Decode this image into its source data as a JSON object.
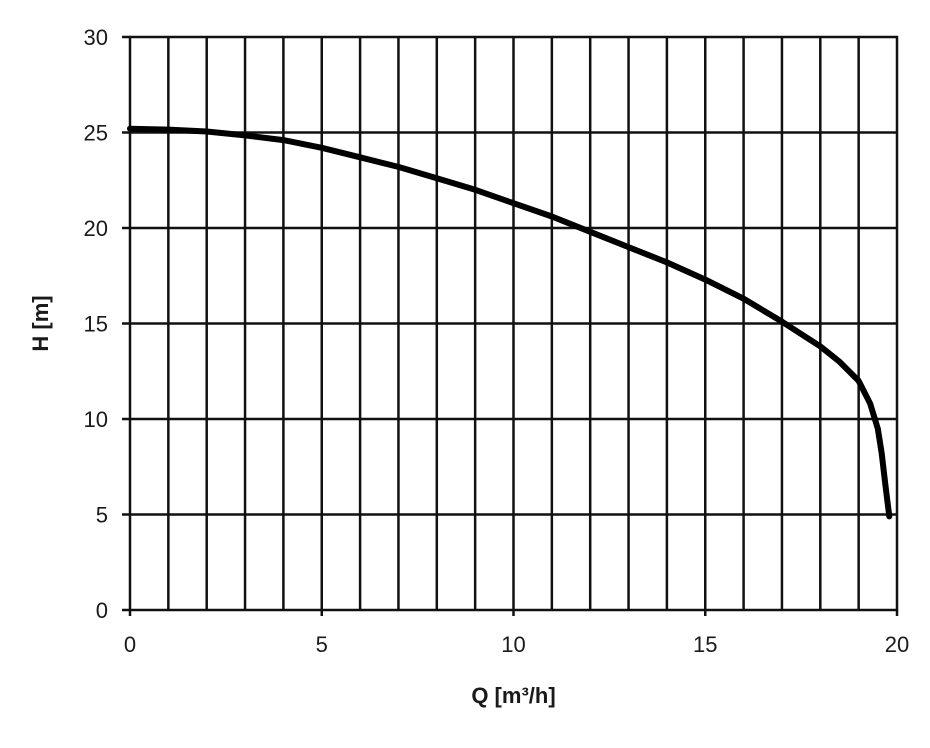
{
  "chart_data": {
    "type": "line",
    "xlabel": "Q [m³/h]",
    "ylabel": "H [m]",
    "xlim": [
      0,
      20
    ],
    "ylim": [
      0,
      30
    ],
    "x_ticks": [
      0,
      5,
      10,
      15,
      20
    ],
    "y_ticks": [
      0,
      5,
      10,
      15,
      20,
      25,
      30
    ],
    "x_grid_step": 1,
    "y_grid_step": 5,
    "grid": true,
    "legend": "none",
    "line_color": "#000000",
    "series": [
      {
        "x": [
          0,
          1,
          2,
          3,
          4,
          5,
          6,
          7,
          8,
          9,
          10,
          11,
          12,
          13,
          14,
          15,
          16,
          17,
          18,
          18.5,
          19,
          19.3,
          19.5,
          19.6,
          19.7,
          19.8
        ],
        "y": [
          25.2,
          25.15,
          25.05,
          24.85,
          24.6,
          24.2,
          23.7,
          23.2,
          22.6,
          22.0,
          21.3,
          20.6,
          19.8,
          19.0,
          18.2,
          17.3,
          16.3,
          15.1,
          13.8,
          13.0,
          12.0,
          10.8,
          9.5,
          8.2,
          6.5,
          4.9
        ]
      }
    ]
  }
}
